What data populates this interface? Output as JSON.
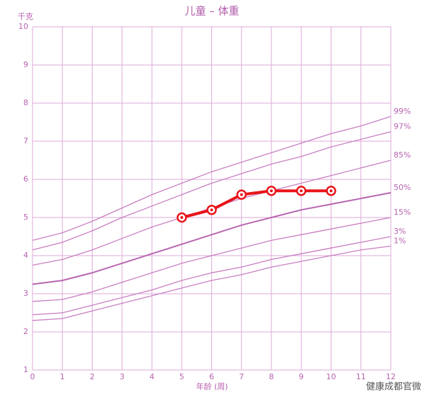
{
  "chart_data": {
    "type": "line",
    "title": "儿童 – 体重",
    "y_label": "千克",
    "x_label": "年龄 (周)",
    "watermark": "健康成都官微",
    "x": [
      0,
      1,
      2,
      3,
      4,
      5,
      6,
      7,
      8,
      9,
      10,
      11,
      12
    ],
    "xlim": [
      0,
      12
    ],
    "ylim": [
      1,
      10
    ],
    "xticks": [
      0,
      1,
      2,
      3,
      4,
      5,
      6,
      7,
      8,
      9,
      10,
      11,
      12
    ],
    "yticks": [
      1,
      2,
      3,
      4,
      5,
      6,
      7,
      8,
      9,
      10
    ],
    "grid": true,
    "series": [
      {
        "name": "99%",
        "color": "#c97fc2",
        "values": [
          4.4,
          4.6,
          4.9,
          5.25,
          5.6,
          5.9,
          6.2,
          6.45,
          6.7,
          6.95,
          7.2,
          7.4,
          7.65
        ]
      },
      {
        "name": "97%",
        "color": "#c97fc2",
        "values": [
          4.15,
          4.35,
          4.65,
          5.0,
          5.3,
          5.6,
          5.9,
          6.15,
          6.4,
          6.6,
          6.85,
          7.05,
          7.25
        ]
      },
      {
        "name": "85%",
        "color": "#c97fc2",
        "values": [
          3.75,
          3.9,
          4.15,
          4.45,
          4.75,
          5.0,
          5.25,
          5.5,
          5.7,
          5.9,
          6.1,
          6.3,
          6.5
        ]
      },
      {
        "name": "50%",
        "color": "#b866b0",
        "values": [
          3.25,
          3.35,
          3.55,
          3.8,
          4.05,
          4.3,
          4.55,
          4.8,
          5.0,
          5.2,
          5.35,
          5.5,
          5.65
        ]
      },
      {
        "name": "15%",
        "color": "#c97fc2",
        "values": [
          2.8,
          2.85,
          3.05,
          3.3,
          3.55,
          3.8,
          4.0,
          4.2,
          4.4,
          4.55,
          4.7,
          4.85,
          5.0
        ]
      },
      {
        "name": "3%",
        "color": "#c97fc2",
        "values": [
          2.45,
          2.5,
          2.7,
          2.9,
          3.1,
          3.35,
          3.55,
          3.7,
          3.9,
          4.05,
          4.2,
          4.35,
          4.5
        ]
      },
      {
        "name": "1%",
        "color": "#c97fc2",
        "values": [
          2.3,
          2.35,
          2.55,
          2.75,
          2.95,
          3.15,
          3.35,
          3.5,
          3.7,
          3.85,
          4.0,
          4.15,
          4.25
        ]
      }
    ],
    "child": {
      "color": "#e8141a",
      "x": [
        5,
        6,
        7,
        8,
        9,
        10
      ],
      "values": [
        5.0,
        5.2,
        5.6,
        5.7,
        5.7,
        5.7
      ]
    }
  }
}
